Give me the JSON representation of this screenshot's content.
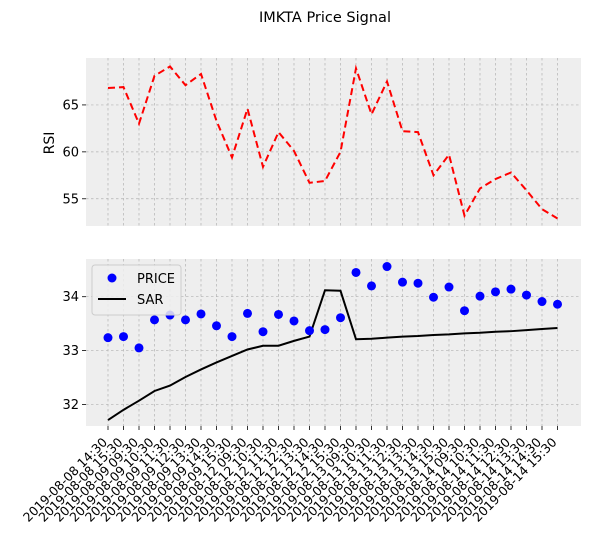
{
  "figure": {
    "title": "IMKTA Price Signal"
  },
  "colors": {
    "panel_bg": "#eeeeee",
    "grid": "#b2b2b2",
    "rsi": "#ff0000",
    "price": "#0000ff",
    "sar": "#000000"
  },
  "chart_data": [
    {
      "type": "line",
      "ylabel": "RSI",
      "ylim": [
        52.1,
        70.0
      ],
      "yticks": [
        55,
        60,
        65
      ],
      "grid": true,
      "series": [
        {
          "name": "",
          "style": "dashed",
          "color": "#ff0000",
          "values": [
            66.8,
            66.9,
            63.0,
            68.1,
            69.1,
            67.1,
            68.3,
            63.3,
            59.4,
            64.6,
            58.4,
            62.1,
            60.1,
            56.7,
            56.9,
            60.0,
            68.9,
            64.0,
            67.5,
            62.2,
            62.1,
            57.5,
            59.7,
            53.2,
            56.1,
            57.1,
            57.8,
            55.9,
            53.9,
            52.9
          ]
        }
      ]
    },
    {
      "type": "line",
      "ylim": [
        31.6,
        34.7
      ],
      "yticks": [
        32,
        33,
        34
      ],
      "grid": true,
      "legend": "top-left",
      "categories": [
        "2019-08-08 14:30",
        "2019-08-08 15:30",
        "2019-08-09 09:30",
        "2019-08-09 10:30",
        "2019-08-09 11:30",
        "2019-08-09 12:30",
        "2019-08-09 13:30",
        "2019-08-09 14:30",
        "2019-08-09 15:30",
        "2019-08-12 09:30",
        "2019-08-12 10:30",
        "2019-08-12 11:30",
        "2019-08-12 12:30",
        "2019-08-12 13:30",
        "2019-08-12 14:30",
        "2019-08-12 15:30",
        "2019-08-13 09:30",
        "2019-08-13 10:30",
        "2019-08-13 11:30",
        "2019-08-13 12:30",
        "2019-08-13 13:30",
        "2019-08-13 14:30",
        "2019-08-13 15:30",
        "2019-08-14 09:30",
        "2019-08-14 10:30",
        "2019-08-14 11:30",
        "2019-08-14 12:30",
        "2019-08-14 13:30",
        "2019-08-14 14:30",
        "2019-08-14 15:30"
      ],
      "series": [
        {
          "name": "PRICE",
          "style": "markers",
          "color": "#0000ff",
          "values": [
            33.24,
            33.26,
            33.05,
            33.57,
            33.66,
            33.57,
            33.68,
            33.46,
            33.26,
            33.69,
            33.35,
            33.67,
            33.55,
            33.37,
            33.39,
            33.61,
            34.45,
            34.2,
            34.56,
            34.27,
            34.25,
            33.99,
            34.18,
            33.74,
            34.01,
            34.09,
            34.14,
            34.03,
            33.91,
            33.86
          ]
        },
        {
          "name": "SAR",
          "style": "solid",
          "color": "#000000",
          "values": [
            31.71,
            31.9,
            32.07,
            32.25,
            32.35,
            32.51,
            32.65,
            32.78,
            32.9,
            33.02,
            33.09,
            33.09,
            33.18,
            33.26,
            34.12,
            34.11,
            33.21,
            33.22,
            33.24,
            33.26,
            33.27,
            33.29,
            33.3,
            33.32,
            33.33,
            33.35,
            33.36,
            33.38,
            33.4,
            33.42
          ]
        }
      ]
    }
  ]
}
